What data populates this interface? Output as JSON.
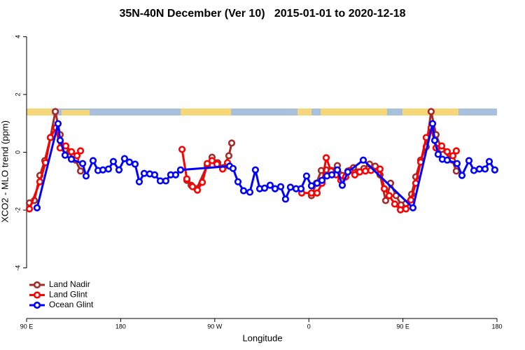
{
  "chart_data": {
    "type": "line",
    "title": "35N-40N December (Ver 10)   2015-01-01 to 2020-12-18",
    "x_label": "Longitude",
    "y_label": "XCO2 - MLO trend (ppm)",
    "xlim": [
      90,
      540
    ],
    "ylim": [
      -5.75,
      4.3
    ],
    "xticks": [
      {
        "value": 90,
        "label": "90 E"
      },
      180,
      {
        "value": 270,
        "label": "90 W"
      },
      {
        "value": 360,
        "label": "0"
      },
      {
        "value": 450,
        "label": "90 E"
      },
      {
        "value": 540,
        "label": "180"
      }
    ],
    "yticks": [
      -4,
      -2,
      0,
      2,
      4
    ],
    "legend": "bottomleft",
    "series": [
      {
        "name": "Land Nadir",
        "color": "#a52a2a",
        "x": [
          92.7,
          97.4,
          102.7,
          107.4,
          112.8,
          117.5,
          122.1,
          126.8,
          136.9,
          141.6,
          null,
          243.3,
          247.4,
          252.7,
          262.8,
          267.4,
          272.8,
          278.2,
          283.5,
          286.2,
          null,
          362.5,
          367.2,
          371.9,
          376.6,
          381.9,
          387.3,
          392.0,
          397.3,
          402.7,
          407.4,
          412.7,
          418.1,
          423.5,
          428.1,
          433.5,
          438.2,
          443.5,
          448.2,
          452.9,
          458.3,
          462.3,
          467.0,
          472.3,
          477.0,
          481.7,
          487.1,
          497.1,
          501.1
        ],
        "values": [
          -1.75,
          -1.67,
          -0.8,
          -0.29,
          0.51,
          1.41,
          0.61,
          0.1,
          -0.27,
          -0.65,
          null,
          -0.97,
          -1.14,
          -1.26,
          -0.46,
          -0.17,
          -0.36,
          -0.53,
          -0.12,
          0.32,
          null,
          -1.5,
          -1.07,
          -0.63,
          -0.61,
          -0.63,
          -0.46,
          -0.8,
          -0.65,
          -0.53,
          -0.68,
          -0.56,
          -0.41,
          -0.48,
          -0.78,
          -1.67,
          -1.07,
          -1.5,
          -1.82,
          -1.77,
          -1.45,
          -0.85,
          -0.27,
          0.19,
          1.41,
          0.61,
          0.1,
          -0.27,
          -0.65
        ]
      },
      {
        "name": "Land Glint",
        "color": "#ff0000",
        "x": [
          92.7,
          102.7,
          108.1,
          112.8,
          118.1,
          122.1,
          127.5,
          132.9,
          138.2,
          141.6,
          null,
          238.7,
          243.3,
          248.7,
          253.4,
          258.1,
          262.8,
          267.4,
          272.1,
          277.5,
          282.2,
          null,
          353.2,
          362.5,
          367.9,
          372.6,
          376.6,
          381.3,
          386.0,
          390.6,
          395.3,
          399.4,
          404.0,
          408.7,
          414.1,
          419.4,
          428.1,
          432.2,
          436.9,
          442.2,
          447.6,
          452.9,
          457.6,
          462.3,
          467.0,
          472.3,
          477.0,
          481.7,
          487.1,
          492.4,
          497.8,
          501.1
        ],
        "values": [
          -1.96,
          -1.02,
          -0.36,
          0.51,
          0.85,
          0.15,
          0.22,
          0.02,
          -0.12,
          0.05,
          null,
          0.1,
          -0.92,
          -1.19,
          -1.31,
          -1.04,
          -0.39,
          -0.29,
          -0.41,
          -0.58,
          -0.36,
          null,
          -1.41,
          -1.41,
          -1.41,
          -1.07,
          -0.19,
          -0.65,
          -0.78,
          -0.97,
          -0.85,
          -0.63,
          -0.78,
          -0.68,
          -0.65,
          -0.63,
          -0.58,
          -1.26,
          -1.5,
          -1.79,
          -1.99,
          -1.96,
          -1.65,
          -1.07,
          -0.34,
          0.51,
          0.85,
          0.15,
          0.22,
          0.02,
          -0.12,
          0.05
        ]
      },
      {
        "name": "Ocean Glint",
        "color": "#0000ff",
        "x": [
          100.0,
          120.1,
          122.1,
          126.8,
          132.9,
          143.6,
          146.9,
          153.6,
          158.3,
          163.0,
          168.3,
          173.0,
          178.4,
          183.7,
          188.4,
          193.8,
          197.8,
          202.5,
          207.8,
          212.5,
          217.9,
          223.2,
          227.9,
          232.6,
          237.3,
          284.2,
          287.5,
          292.2,
          297.6,
          303.6,
          308.9,
          313.0,
          317.7,
          323.0,
          327.7,
          333.1,
          337.7,
          342.4,
          347.8,
          352.5,
          357.8,
          362.5,
          367.9,
          372.6,
          377.3,
          382.0,
          387.3,
          392.0,
          397.3,
          412.1,
          459.6,
          478.4,
          480.4,
          483.7,
          487.7,
          492.4,
          501.8,
          506.5,
          513.2,
          517.9,
          523.2,
          528.6,
          532.6,
          537.9
        ],
        "values": [
          -1.92,
          0.99,
          0.41,
          -0.1,
          -0.24,
          -0.39,
          -0.82,
          -0.29,
          -0.63,
          -0.61,
          -0.58,
          -0.32,
          -0.61,
          -0.22,
          -0.34,
          -0.41,
          -1.02,
          -0.73,
          -0.75,
          -0.78,
          -0.99,
          -0.99,
          -0.78,
          -0.78,
          -0.61,
          -0.48,
          -0.56,
          -1.02,
          -1.33,
          -1.38,
          -0.61,
          -1.26,
          -1.24,
          -1.14,
          -1.26,
          -1.19,
          -1.62,
          -1.21,
          -1.26,
          -1.26,
          -0.82,
          -1.16,
          -1.07,
          -0.97,
          -0.82,
          -0.78,
          -0.61,
          -1.14,
          -0.68,
          -0.27,
          -1.92,
          0.99,
          0.41,
          -0.07,
          -0.24,
          -0.27,
          -0.39,
          -0.8,
          -0.29,
          -0.63,
          -0.58,
          -0.58,
          -0.32,
          -0.61
        ]
      }
    ]
  }
}
